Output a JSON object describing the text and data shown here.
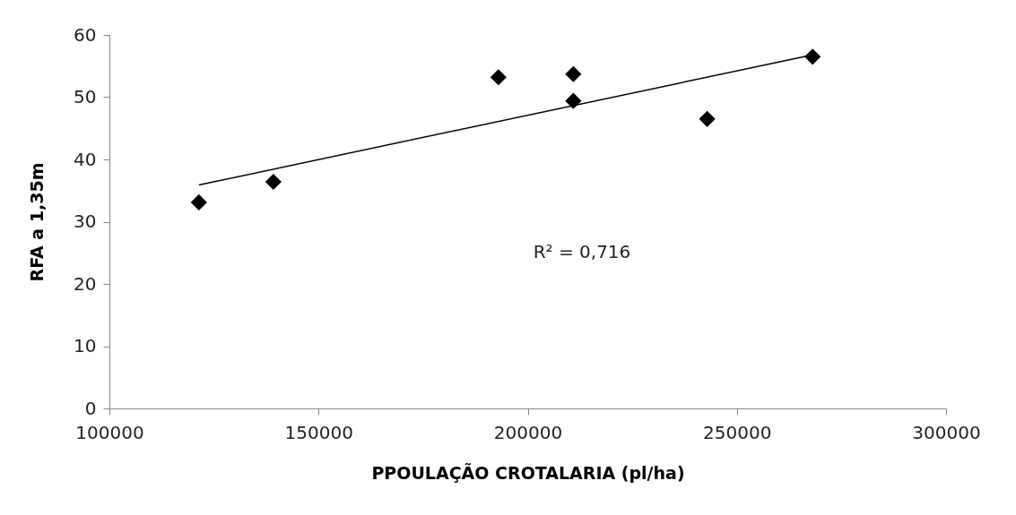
{
  "chart_data": {
    "type": "scatter",
    "xlabel": "PPOULAÇÃO CROTALARIA (pl/ha)",
    "ylabel": "RFA a 1,35m",
    "series": [
      {
        "color": "#000000",
        "x": [
          121400,
          139200,
          193000,
          210900,
          210900,
          242900,
          268100
        ],
        "values": [
          33.1,
          36.4,
          53.2,
          53.7,
          49.4,
          46.5,
          56.5
        ]
      },
      {
        "type": "line",
        "marker": "none",
        "color": "#000000",
        "x": [
          121400,
          268100
        ],
        "values": [
          35.9,
          56.8
        ]
      }
    ],
    "xlim": [
      100000,
      300000
    ],
    "xticks": [
      100000,
      150000,
      200000,
      250000,
      300000
    ],
    "ylim": [
      0,
      60
    ],
    "yticks": [
      0,
      10,
      20,
      30,
      40,
      50,
      60
    ],
    "grid": false,
    "marker": "diamond",
    "line_style": "solid",
    "annotations": [
      "R² = 0,716"
    ]
  }
}
